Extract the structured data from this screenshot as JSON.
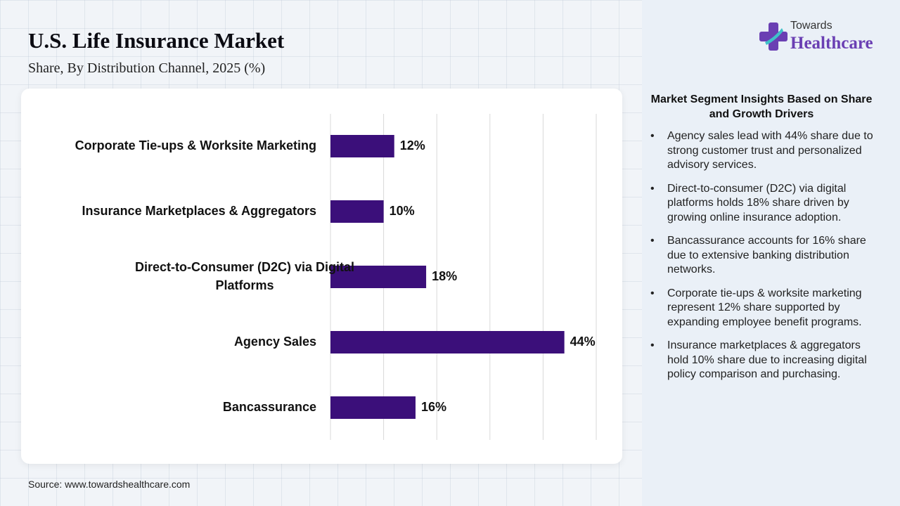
{
  "header": {
    "title": "U.S. Life Insurance Market",
    "subtitle": "Share, By Distribution Channel, 2025 (%)"
  },
  "source": "Source: www.towardshealthcare.com",
  "logo": {
    "top": "Towards",
    "main": "Healthcare",
    "icon": "medical-cross-icon",
    "colors": {
      "purple": "#6a3fb3",
      "teal": "#3fc1c9"
    }
  },
  "insights": {
    "title": "Market Segment Insights Based on Share and Growth Drivers",
    "items": [
      "Agency sales lead with 44% share due to strong customer trust and personalized advisory services.",
      "Direct-to-consumer (D2C) via digital platforms holds 18% share driven by growing online insurance adoption.",
      "Bancassurance accounts for 16% share due to extensive banking distribution networks.",
      "Corporate tie-ups & worksite marketing represent 12% share supported by expanding employee benefit programs.",
      "Insurance marketplaces & aggregators hold 10% share due to increasing digital policy comparison and purchasing."
    ]
  },
  "chart_data": {
    "type": "bar",
    "orientation": "horizontal",
    "categories": [
      "Corporate Tie-ups & Worksite Marketing",
      "Insurance Marketplaces & Aggregators",
      "Direct-to-Consumer (D2C) via Digital Platforms",
      "Agency Sales",
      "Bancassurance"
    ],
    "values": [
      12,
      10,
      18,
      44,
      16
    ],
    "data_labels": [
      "12%",
      "10%",
      "18%",
      "44%",
      "16%"
    ],
    "xlim": [
      0,
      50
    ],
    "grid_step": 10,
    "grid": true,
    "bar_color": "#3b0f7a"
  }
}
